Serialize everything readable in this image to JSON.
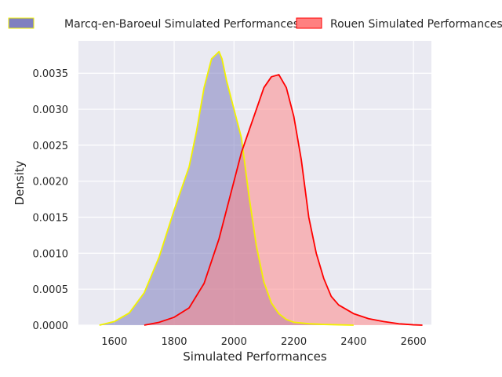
{
  "chart_data": {
    "type": "area",
    "title": "",
    "xlabel": "Simulated Performances",
    "ylabel": "Density",
    "xlim": [
      1480,
      2660
    ],
    "ylim": [
      0,
      0.00395
    ],
    "x_ticks": [
      1600,
      1800,
      2000,
      2200,
      2400,
      2600
    ],
    "x_tick_labels": [
      "1600",
      "1800",
      "2000",
      "2200",
      "2400",
      "2600"
    ],
    "y_ticks": [
      0,
      0.0005,
      0.001,
      0.0015,
      0.002,
      0.0025,
      0.003,
      0.0035
    ],
    "y_tick_labels": [
      "0.0000",
      "0.0005",
      "0.0010",
      "0.0015",
      "0.0020",
      "0.0025",
      "0.0030",
      "0.0035"
    ],
    "grid": true,
    "legend_position": "top",
    "background": "#eaeaf2",
    "series": [
      {
        "name": "Marcq-en-Baroeul Simulated Performances",
        "fill_color": "#8080c0",
        "line_color": "#f2f200",
        "x": [
          1550,
          1600,
          1650,
          1700,
          1750,
          1800,
          1850,
          1875,
          1900,
          1925,
          1950,
          1960,
          1975,
          2000,
          2025,
          2050,
          2075,
          2100,
          2125,
          2150,
          2175,
          2200,
          2250,
          2300,
          2350,
          2400
        ],
        "y": [
          0,
          5e-05,
          0.00017,
          0.00045,
          0.00095,
          0.0016,
          0.0022,
          0.0027,
          0.0033,
          0.0037,
          0.0038,
          0.0037,
          0.0034,
          0.003,
          0.0026,
          0.0018,
          0.0011,
          0.0006,
          0.00031,
          0.00016,
          8e-05,
          4e-05,
          2e-05,
          1e-05,
          5e-06,
          0
        ]
      },
      {
        "name": "Rouen Simulated Performances",
        "fill_color": "#ff8080",
        "line_color": "#ff0000",
        "x": [
          1700,
          1750,
          1800,
          1850,
          1900,
          1950,
          2000,
          2025,
          2050,
          2075,
          2100,
          2125,
          2150,
          2175,
          2200,
          2225,
          2250,
          2275,
          2300,
          2325,
          2350,
          2400,
          2450,
          2500,
          2550,
          2600,
          2630
        ],
        "y": [
          0,
          4e-05,
          0.00011,
          0.00024,
          0.00058,
          0.0012,
          0.002,
          0.0024,
          0.0027,
          0.003,
          0.0033,
          0.00345,
          0.00348,
          0.0033,
          0.0029,
          0.0023,
          0.0015,
          0.001,
          0.00065,
          0.0004,
          0.00028,
          0.00016,
          9e-05,
          5e-05,
          2e-05,
          5e-06,
          0
        ]
      }
    ]
  }
}
